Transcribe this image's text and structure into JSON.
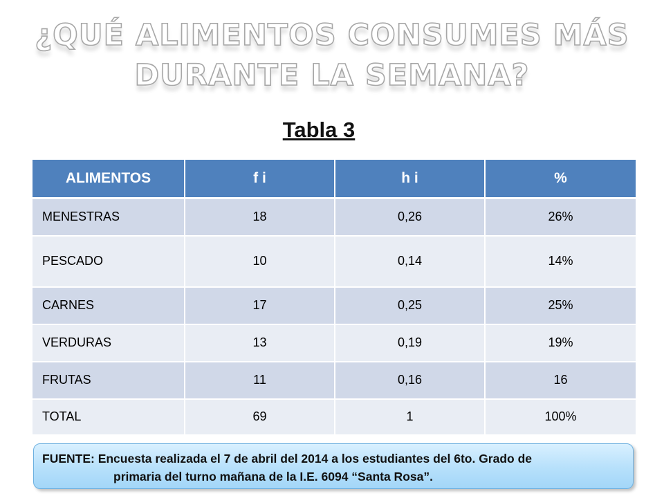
{
  "slide": {
    "title_line1": "¿QUÉ ALIMENTOS CONSUMES MÁS",
    "title_line2": "DURANTE LA SEMANA?",
    "table_caption": "Tabla 3"
  },
  "table": {
    "headers": [
      "ALIMENTOS",
      "f i",
      "h i",
      "%"
    ],
    "rows": [
      [
        "MENESTRAS",
        "18",
        "0,26",
        "26%"
      ],
      [
        "PESCADO",
        "10",
        "0,14",
        "14%"
      ],
      [
        "CARNES",
        "17",
        "0,25",
        "25%"
      ],
      [
        "VERDURAS",
        "13",
        "0,19",
        "19%"
      ],
      [
        "FRUTAS",
        "11",
        "0,16",
        "16"
      ],
      [
        "TOTAL",
        "69",
        "1",
        "100%"
      ]
    ]
  },
  "source": {
    "line1": "FUENTE:  Encuesta realizada el 7 de abril del 2014 a los estudiantes del 6to. Grado de",
    "line2": "primaria del turno mañana de la I.E. 6094  “Santa Rosa”."
  },
  "colors": {
    "header_blue": "#4f81bd",
    "row_band_dark": "#d0d8e8",
    "row_band_light": "#e9edf4",
    "source_box": "#b6e0fb"
  }
}
